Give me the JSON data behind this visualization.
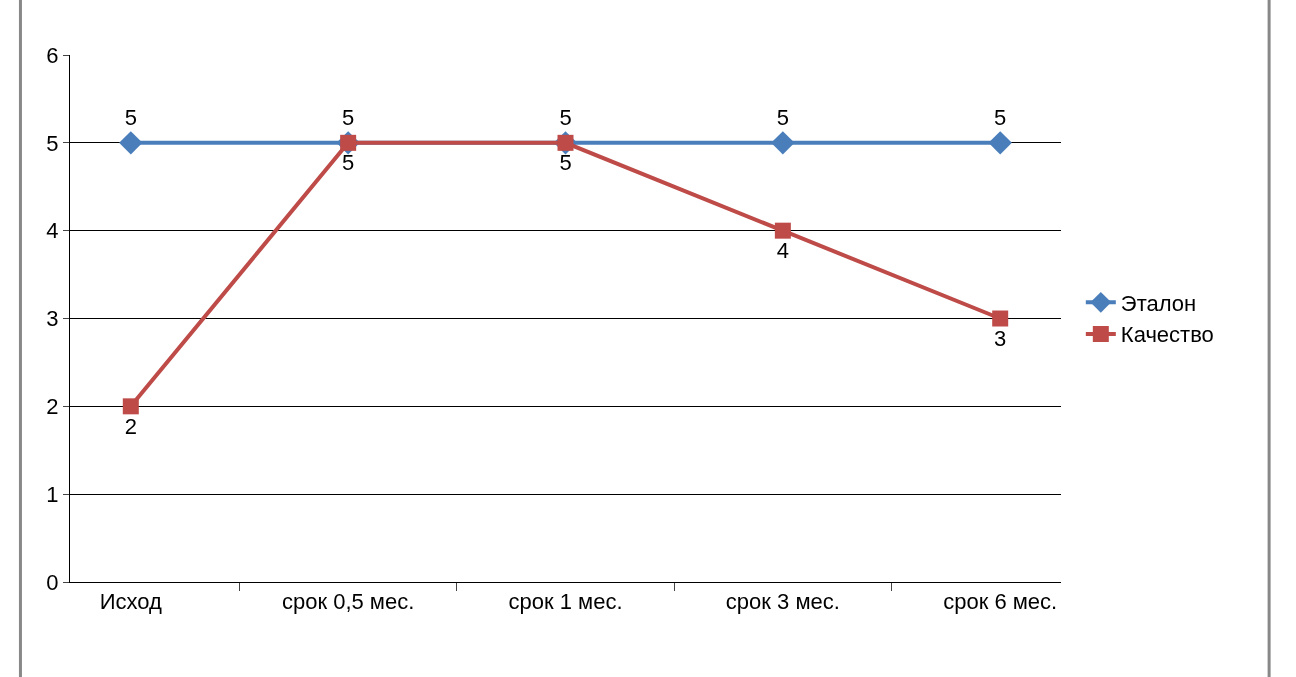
{
  "chart_data": {
    "type": "line",
    "categories": [
      "Исход",
      "срок 0,5 мес.",
      "срок 1 мес.",
      "срок 3 мес.",
      "срок 6 мес."
    ],
    "series": [
      {
        "name": "Эталон",
        "color": "#4a7ebb",
        "marker": "diamond",
        "values": [
          5,
          5,
          5,
          5,
          5
        ]
      },
      {
        "name": "Качество",
        "color": "#be4b48",
        "marker": "square",
        "values": [
          2,
          5,
          5,
          4,
          3
        ]
      }
    ],
    "ylim": [
      0,
      6
    ],
    "yticks": [
      0,
      1,
      2,
      3,
      4,
      5,
      6
    ],
    "grid": "y",
    "legend": "right",
    "data_labels": true,
    "line_style": "solid"
  }
}
